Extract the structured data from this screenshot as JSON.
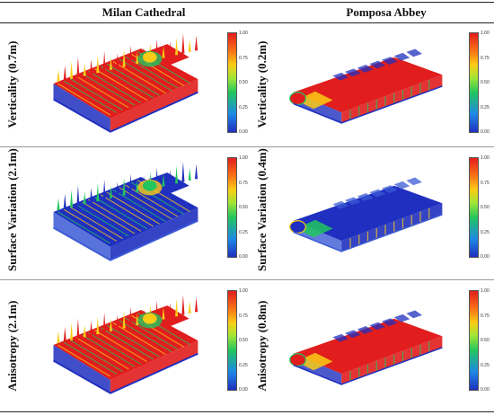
{
  "columns": [
    "Milan Cathedral",
    "Pomposa Abbey"
  ],
  "rows": [
    {
      "left_label": "Verticality (0.7m)",
      "right_label": "Verticality (0.2m)"
    },
    {
      "left_label": "Surface Variation (2.1m)",
      "right_label": "Surface Variation (0.4m)"
    },
    {
      "left_label": "Anisotropy (2.1m)",
      "right_label": "Anisotropy (0.8m)"
    }
  ],
  "colorbar": {
    "ticks": [
      "1.00",
      "0.75",
      "0.50",
      "0.25",
      "0.00"
    ],
    "colors": {
      "blue": "#1f2fbf",
      "green": "#22c55e",
      "yellow": "#facc15",
      "red": "#e11d1d"
    }
  },
  "dominant_color": [
    "red",
    "blue",
    "red"
  ]
}
